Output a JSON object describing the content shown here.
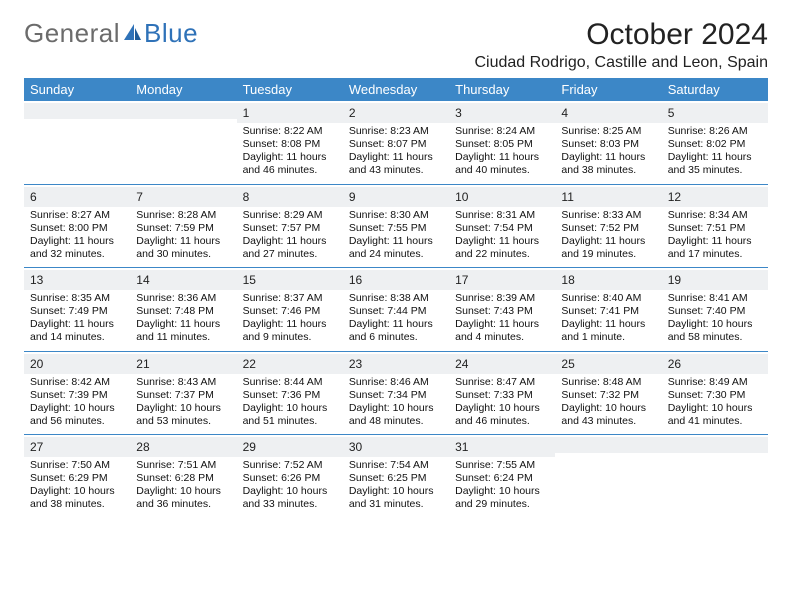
{
  "brand": {
    "word1": "General",
    "word2": "Blue"
  },
  "title": "October 2024",
  "location": "Ciudad Rodrigo, Castille and Leon, Spain",
  "colors": {
    "header_bg": "#3c87c7",
    "border": "#3c87c7",
    "daynum_bg": "#eef0f2",
    "logo_gray": "#6b6b6b",
    "logo_blue": "#2f72b8",
    "text": "#111111",
    "background": "#ffffff"
  },
  "day_headers": [
    "Sunday",
    "Monday",
    "Tuesday",
    "Wednesday",
    "Thursday",
    "Friday",
    "Saturday"
  ],
  "weeks": [
    [
      null,
      null,
      {
        "n": "1",
        "l1": "Sunrise: 8:22 AM",
        "l2": "Sunset: 8:08 PM",
        "l3": "Daylight: 11 hours",
        "l4": "and 46 minutes."
      },
      {
        "n": "2",
        "l1": "Sunrise: 8:23 AM",
        "l2": "Sunset: 8:07 PM",
        "l3": "Daylight: 11 hours",
        "l4": "and 43 minutes."
      },
      {
        "n": "3",
        "l1": "Sunrise: 8:24 AM",
        "l2": "Sunset: 8:05 PM",
        "l3": "Daylight: 11 hours",
        "l4": "and 40 minutes."
      },
      {
        "n": "4",
        "l1": "Sunrise: 8:25 AM",
        "l2": "Sunset: 8:03 PM",
        "l3": "Daylight: 11 hours",
        "l4": "and 38 minutes."
      },
      {
        "n": "5",
        "l1": "Sunrise: 8:26 AM",
        "l2": "Sunset: 8:02 PM",
        "l3": "Daylight: 11 hours",
        "l4": "and 35 minutes."
      }
    ],
    [
      {
        "n": "6",
        "l1": "Sunrise: 8:27 AM",
        "l2": "Sunset: 8:00 PM",
        "l3": "Daylight: 11 hours",
        "l4": "and 32 minutes."
      },
      {
        "n": "7",
        "l1": "Sunrise: 8:28 AM",
        "l2": "Sunset: 7:59 PM",
        "l3": "Daylight: 11 hours",
        "l4": "and 30 minutes."
      },
      {
        "n": "8",
        "l1": "Sunrise: 8:29 AM",
        "l2": "Sunset: 7:57 PM",
        "l3": "Daylight: 11 hours",
        "l4": "and 27 minutes."
      },
      {
        "n": "9",
        "l1": "Sunrise: 8:30 AM",
        "l2": "Sunset: 7:55 PM",
        "l3": "Daylight: 11 hours",
        "l4": "and 24 minutes."
      },
      {
        "n": "10",
        "l1": "Sunrise: 8:31 AM",
        "l2": "Sunset: 7:54 PM",
        "l3": "Daylight: 11 hours",
        "l4": "and 22 minutes."
      },
      {
        "n": "11",
        "l1": "Sunrise: 8:33 AM",
        "l2": "Sunset: 7:52 PM",
        "l3": "Daylight: 11 hours",
        "l4": "and 19 minutes."
      },
      {
        "n": "12",
        "l1": "Sunrise: 8:34 AM",
        "l2": "Sunset: 7:51 PM",
        "l3": "Daylight: 11 hours",
        "l4": "and 17 minutes."
      }
    ],
    [
      {
        "n": "13",
        "l1": "Sunrise: 8:35 AM",
        "l2": "Sunset: 7:49 PM",
        "l3": "Daylight: 11 hours",
        "l4": "and 14 minutes."
      },
      {
        "n": "14",
        "l1": "Sunrise: 8:36 AM",
        "l2": "Sunset: 7:48 PM",
        "l3": "Daylight: 11 hours",
        "l4": "and 11 minutes."
      },
      {
        "n": "15",
        "l1": "Sunrise: 8:37 AM",
        "l2": "Sunset: 7:46 PM",
        "l3": "Daylight: 11 hours",
        "l4": "and 9 minutes."
      },
      {
        "n": "16",
        "l1": "Sunrise: 8:38 AM",
        "l2": "Sunset: 7:44 PM",
        "l3": "Daylight: 11 hours",
        "l4": "and 6 minutes."
      },
      {
        "n": "17",
        "l1": "Sunrise: 8:39 AM",
        "l2": "Sunset: 7:43 PM",
        "l3": "Daylight: 11 hours",
        "l4": "and 4 minutes."
      },
      {
        "n": "18",
        "l1": "Sunrise: 8:40 AM",
        "l2": "Sunset: 7:41 PM",
        "l3": "Daylight: 11 hours",
        "l4": "and 1 minute."
      },
      {
        "n": "19",
        "l1": "Sunrise: 8:41 AM",
        "l2": "Sunset: 7:40 PM",
        "l3": "Daylight: 10 hours",
        "l4": "and 58 minutes."
      }
    ],
    [
      {
        "n": "20",
        "l1": "Sunrise: 8:42 AM",
        "l2": "Sunset: 7:39 PM",
        "l3": "Daylight: 10 hours",
        "l4": "and 56 minutes."
      },
      {
        "n": "21",
        "l1": "Sunrise: 8:43 AM",
        "l2": "Sunset: 7:37 PM",
        "l3": "Daylight: 10 hours",
        "l4": "and 53 minutes."
      },
      {
        "n": "22",
        "l1": "Sunrise: 8:44 AM",
        "l2": "Sunset: 7:36 PM",
        "l3": "Daylight: 10 hours",
        "l4": "and 51 minutes."
      },
      {
        "n": "23",
        "l1": "Sunrise: 8:46 AM",
        "l2": "Sunset: 7:34 PM",
        "l3": "Daylight: 10 hours",
        "l4": "and 48 minutes."
      },
      {
        "n": "24",
        "l1": "Sunrise: 8:47 AM",
        "l2": "Sunset: 7:33 PM",
        "l3": "Daylight: 10 hours",
        "l4": "and 46 minutes."
      },
      {
        "n": "25",
        "l1": "Sunrise: 8:48 AM",
        "l2": "Sunset: 7:32 PM",
        "l3": "Daylight: 10 hours",
        "l4": "and 43 minutes."
      },
      {
        "n": "26",
        "l1": "Sunrise: 8:49 AM",
        "l2": "Sunset: 7:30 PM",
        "l3": "Daylight: 10 hours",
        "l4": "and 41 minutes."
      }
    ],
    [
      {
        "n": "27",
        "l1": "Sunrise: 7:50 AM",
        "l2": "Sunset: 6:29 PM",
        "l3": "Daylight: 10 hours",
        "l4": "and 38 minutes."
      },
      {
        "n": "28",
        "l1": "Sunrise: 7:51 AM",
        "l2": "Sunset: 6:28 PM",
        "l3": "Daylight: 10 hours",
        "l4": "and 36 minutes."
      },
      {
        "n": "29",
        "l1": "Sunrise: 7:52 AM",
        "l2": "Sunset: 6:26 PM",
        "l3": "Daylight: 10 hours",
        "l4": "and 33 minutes."
      },
      {
        "n": "30",
        "l1": "Sunrise: 7:54 AM",
        "l2": "Sunset: 6:25 PM",
        "l3": "Daylight: 10 hours",
        "l4": "and 31 minutes."
      },
      {
        "n": "31",
        "l1": "Sunrise: 7:55 AM",
        "l2": "Sunset: 6:24 PM",
        "l3": "Daylight: 10 hours",
        "l4": "and 29 minutes."
      },
      null,
      null
    ]
  ]
}
